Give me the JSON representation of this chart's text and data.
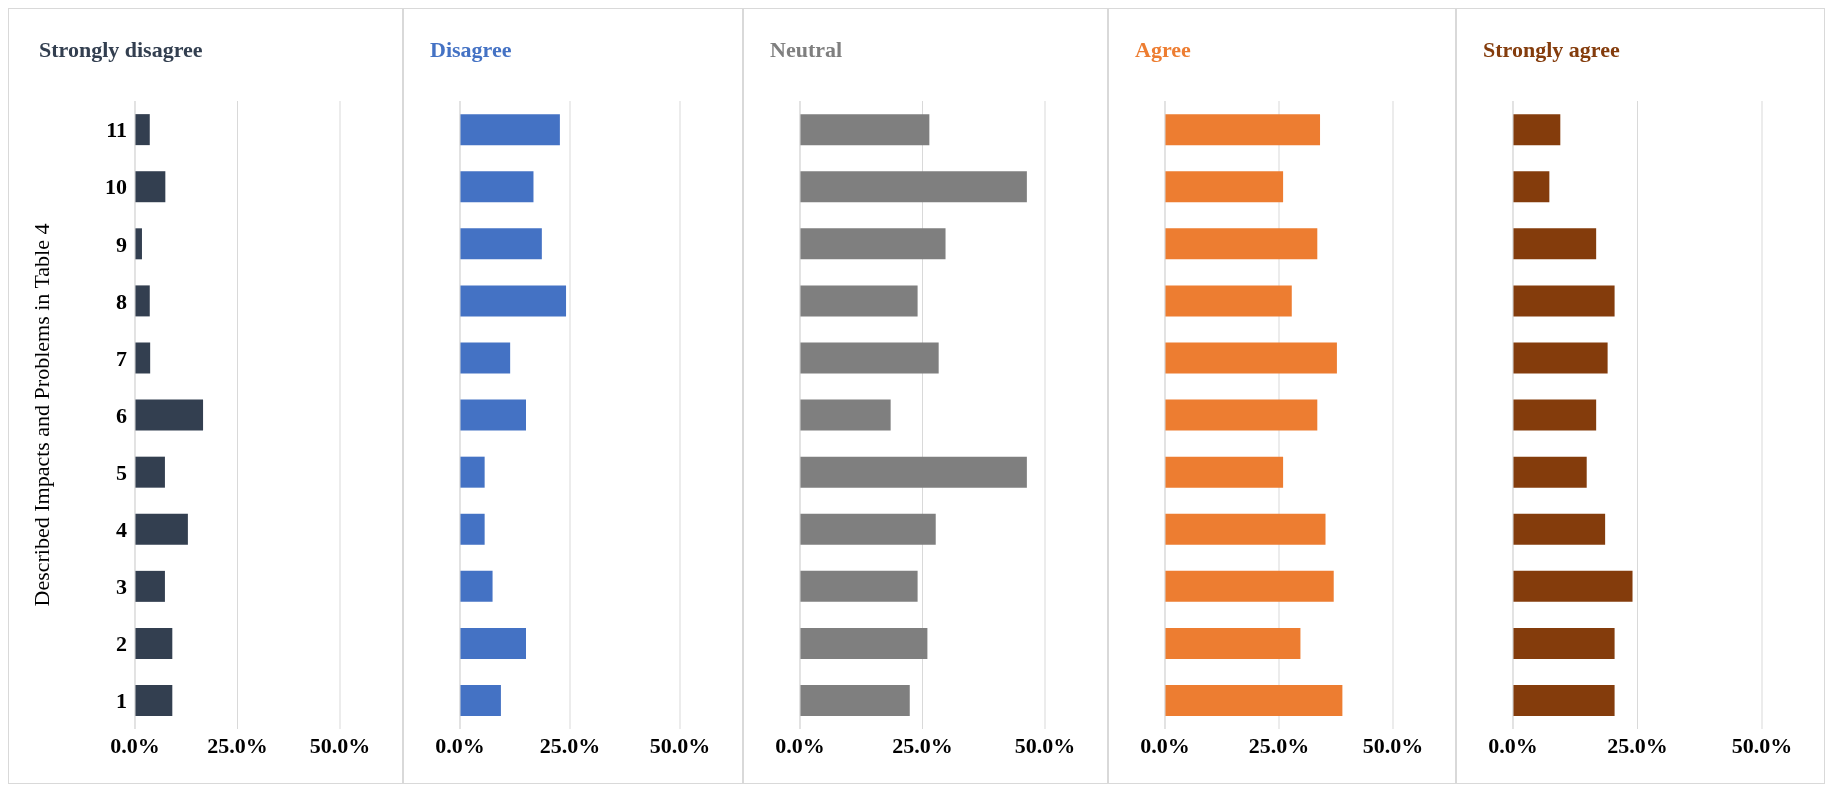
{
  "chart_data": [
    {
      "type": "bar",
      "orientation": "horizontal",
      "title": "Strongly disagree",
      "ylabel": "Described Impacts and Problems in Table 4",
      "categories": [
        "11",
        "10",
        "9",
        "8",
        "7",
        "6",
        "5",
        "4",
        "3",
        "2",
        "1"
      ],
      "color": "#333f50",
      "values": [
        3.6,
        7.4,
        1.7,
        3.6,
        3.7,
        16.6,
        7.3,
        12.9,
        7.3,
        9.1,
        9.1
      ],
      "xlim": [
        0,
        50
      ],
      "xticks": [
        {
          "value": 0,
          "label": "0.0%"
        },
        {
          "value": 25,
          "label": "25.0%"
        },
        {
          "value": 50,
          "label": "50.0%"
        }
      ],
      "grid": "x"
    },
    {
      "type": "bar",
      "orientation": "horizontal",
      "title": "Disagree",
      "categories": [
        "11",
        "10",
        "9",
        "8",
        "7",
        "6",
        "5",
        "4",
        "3",
        "2",
        "1"
      ],
      "color": "#4472c4",
      "values": [
        22.7,
        16.7,
        18.6,
        24.1,
        11.4,
        15.0,
        5.6,
        5.6,
        7.4,
        15.0,
        9.3
      ],
      "xlim": [
        0,
        50
      ],
      "xticks": [
        {
          "value": 0,
          "label": "0.0%"
        },
        {
          "value": 25,
          "label": "25.0%"
        },
        {
          "value": 50,
          "label": "50.0%"
        }
      ],
      "grid": "x",
      "tick_labels": "x"
    },
    {
      "type": "bar",
      "orientation": "horizontal",
      "title": "Neutral",
      "categories": [
        "11",
        "10",
        "9",
        "8",
        "7",
        "6",
        "5",
        "4",
        "3",
        "2",
        "1"
      ],
      "color": "#7f7f7f",
      "values": [
        26.4,
        46.3,
        29.7,
        24.0,
        28.3,
        18.5,
        46.3,
        27.7,
        24.0,
        26.0,
        22.4
      ],
      "xlim": [
        0,
        50
      ],
      "xticks": [
        {
          "value": 0,
          "label": "0.0%"
        },
        {
          "value": 25,
          "label": "25.0%"
        },
        {
          "value": 50,
          "label": "50.0%"
        }
      ],
      "grid": "x",
      "tick_labels": "x"
    },
    {
      "type": "bar",
      "orientation": "horizontal",
      "title": "Agree",
      "categories": [
        "11",
        "10",
        "9",
        "8",
        "7",
        "6",
        "5",
        "4",
        "3",
        "2",
        "1"
      ],
      "color": "#ed7d31",
      "values": [
        34.0,
        25.9,
        33.4,
        27.8,
        37.7,
        33.4,
        25.9,
        35.2,
        37.0,
        29.7,
        38.9
      ],
      "xlim": [
        0,
        50
      ],
      "xticks": [
        {
          "value": 0,
          "label": "0.0%"
        },
        {
          "value": 25,
          "label": "25.0%"
        },
        {
          "value": 50,
          "label": "50.0%"
        }
      ],
      "grid": "x",
      "tick_labels": "x"
    },
    {
      "type": "bar",
      "orientation": "horizontal",
      "title": "Strongly agree",
      "categories": [
        "11",
        "10",
        "9",
        "8",
        "7",
        "6",
        "5",
        "4",
        "3",
        "2",
        "1"
      ],
      "color": "#843c0c",
      "values": [
        9.5,
        7.3,
        16.7,
        20.4,
        19.0,
        16.7,
        14.8,
        18.5,
        24.0,
        20.4,
        20.4
      ],
      "xlim": [
        0,
        50
      ],
      "xticks": [
        {
          "value": 0,
          "label": "0.0%"
        },
        {
          "value": 25,
          "label": "25.0%"
        },
        {
          "value": 50,
          "label": "50.0%"
        }
      ],
      "grid": "x",
      "tick_labels": "x"
    }
  ]
}
